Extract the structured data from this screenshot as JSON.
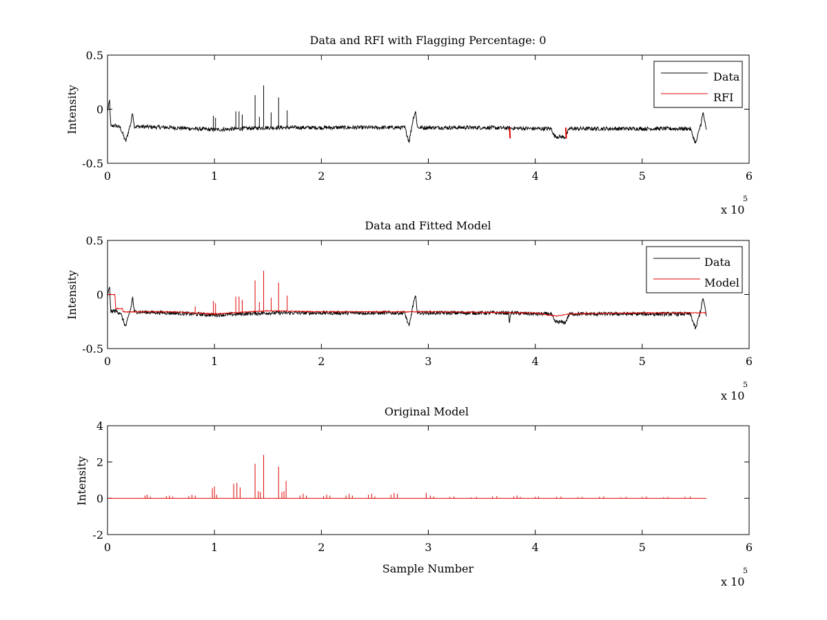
{
  "figure": {
    "multiplier_base": "x 10",
    "multiplier_exp": "5"
  },
  "chart_data": [
    {
      "type": "line",
      "title": "Data and RFI with Flagging Percentage: 0",
      "xlabel": "",
      "ylabel": "Intensity",
      "xlim": [
        0,
        600000
      ],
      "ylim": [
        -0.5,
        0.5
      ],
      "x_ticks": [
        0,
        100000,
        200000,
        300000,
        400000,
        500000,
        600000
      ],
      "x_tick_labels": [
        "0",
        "1",
        "2",
        "3",
        "4",
        "5",
        "6"
      ],
      "y_ticks": [
        -0.5,
        0,
        0.5
      ],
      "y_tick_labels": [
        "-0.5",
        "0",
        "0.5"
      ],
      "legend_position": "top-right",
      "series": [
        {
          "name": "Data",
          "color": "#000000",
          "points": [
            [
              0,
              -0.02
            ],
            [
              2000,
              0.08
            ],
            [
              3000,
              -0.16
            ],
            [
              7000,
              -0.15
            ],
            [
              12000,
              -0.17
            ],
            [
              17000,
              -0.3
            ],
            [
              22000,
              -0.12
            ],
            [
              23500,
              -0.02
            ],
            [
              25000,
              -0.16
            ],
            [
              60000,
              -0.17
            ],
            [
              100000,
              -0.19
            ],
            [
              150000,
              -0.17
            ],
            [
              200000,
              -0.17
            ],
            [
              250000,
              -0.17
            ],
            [
              278000,
              -0.17
            ],
            [
              282000,
              -0.3
            ],
            [
              286000,
              -0.08
            ],
            [
              288000,
              -0.02
            ],
            [
              290000,
              -0.17
            ],
            [
              350000,
              -0.17
            ],
            [
              400000,
              -0.18
            ],
            [
              415000,
              -0.18
            ],
            [
              418000,
              -0.25
            ],
            [
              428000,
              -0.26
            ],
            [
              432000,
              -0.18
            ],
            [
              500000,
              -0.18
            ],
            [
              545000,
              -0.18
            ],
            [
              550000,
              -0.32
            ],
            [
              555000,
              -0.13
            ],
            [
              557000,
              -0.03
            ],
            [
              560000,
              -0.2
            ]
          ],
          "spikes": [
            [
              99000,
              -0.06
            ],
            [
              101000,
              -0.08
            ],
            [
              120000,
              -0.02
            ],
            [
              123000,
              -0.02
            ],
            [
              126000,
              -0.05
            ],
            [
              138000,
              0.13
            ],
            [
              142000,
              -0.07
            ],
            [
              146000,
              0.22
            ],
            [
              153000,
              -0.03
            ],
            [
              160000,
              0.11
            ],
            [
              168000,
              -0.01
            ]
          ],
          "noise": 0.018
        },
        {
          "name": "RFI",
          "color": "#e00000",
          "segments": [
            [
              [
                376000,
                -0.17
              ],
              [
                376500,
                -0.27
              ]
            ],
            [
              [
                428500,
                -0.17
              ],
              [
                429000,
                -0.27
              ]
            ]
          ]
        }
      ]
    },
    {
      "type": "line",
      "title": "Data and Fitted Model",
      "xlabel": "",
      "ylabel": "Intensity",
      "xlim": [
        0,
        600000
      ],
      "ylim": [
        -0.5,
        0.5
      ],
      "x_ticks": [
        0,
        100000,
        200000,
        300000,
        400000,
        500000,
        600000
      ],
      "x_tick_labels": [
        "0",
        "1",
        "2",
        "3",
        "4",
        "5",
        "6"
      ],
      "y_ticks": [
        -0.5,
        0,
        0.5
      ],
      "y_tick_labels": [
        "-0.5",
        "0",
        "0.5"
      ],
      "legend_position": "top-right",
      "series": [
        {
          "name": "Data",
          "color": "#000000",
          "points": [
            [
              0,
              -0.02
            ],
            [
              2000,
              0.08
            ],
            [
              3000,
              -0.16
            ],
            [
              7000,
              -0.15
            ],
            [
              12000,
              -0.17
            ],
            [
              17000,
              -0.3
            ],
            [
              22000,
              -0.12
            ],
            [
              23500,
              -0.02
            ],
            [
              25000,
              -0.16
            ],
            [
              60000,
              -0.17
            ],
            [
              100000,
              -0.19
            ],
            [
              150000,
              -0.17
            ],
            [
              200000,
              -0.17
            ],
            [
              250000,
              -0.17
            ],
            [
              278000,
              -0.17
            ],
            [
              282000,
              -0.3
            ],
            [
              286000,
              -0.08
            ],
            [
              288000,
              -0.02
            ],
            [
              290000,
              -0.17
            ],
            [
              350000,
              -0.17
            ],
            [
              375000,
              -0.17
            ],
            [
              376000,
              -0.27
            ],
            [
              377000,
              -0.17
            ],
            [
              400000,
              -0.18
            ],
            [
              415000,
              -0.18
            ],
            [
              418000,
              -0.25
            ],
            [
              428000,
              -0.26
            ],
            [
              432000,
              -0.18
            ],
            [
              500000,
              -0.18
            ],
            [
              545000,
              -0.18
            ],
            [
              550000,
              -0.32
            ],
            [
              555000,
              -0.13
            ],
            [
              557000,
              -0.03
            ],
            [
              560000,
              -0.2
            ]
          ],
          "noise": 0.018
        },
        {
          "name": "Model",
          "color": "#e00000",
          "points": [
            [
              0,
              0.0
            ],
            [
              7000,
              0.0
            ],
            [
              7500,
              -0.13
            ],
            [
              14000,
              -0.13
            ],
            [
              14500,
              -0.16
            ],
            [
              60000,
              -0.16
            ],
            [
              100000,
              -0.18
            ],
            [
              150000,
              -0.15
            ],
            [
              200000,
              -0.16
            ],
            [
              300000,
              -0.16
            ],
            [
              400000,
              -0.17
            ],
            [
              420000,
              -0.2
            ],
            [
              430000,
              -0.18
            ],
            [
              500000,
              -0.17
            ],
            [
              560000,
              -0.17
            ]
          ],
          "spikes": [
            [
              82000,
              -0.11
            ],
            [
              99000,
              -0.06
            ],
            [
              101000,
              -0.08
            ],
            [
              120000,
              -0.02
            ],
            [
              123000,
              -0.02
            ],
            [
              126000,
              -0.05
            ],
            [
              138000,
              0.13
            ],
            [
              142000,
              -0.07
            ],
            [
              146000,
              0.22
            ],
            [
              153000,
              -0.03
            ],
            [
              160000,
              0.11
            ],
            [
              168000,
              -0.01
            ]
          ],
          "noise": 0.004
        }
      ]
    },
    {
      "type": "line",
      "title": "Original Model",
      "xlabel": "Sample Number",
      "ylabel": "Intensity",
      "xlim": [
        0,
        600000
      ],
      "ylim": [
        -2,
        4
      ],
      "x_ticks": [
        0,
        100000,
        200000,
        300000,
        400000,
        500000,
        600000
      ],
      "x_tick_labels": [
        "0",
        "1",
        "2",
        "3",
        "4",
        "5",
        "6"
      ],
      "y_ticks": [
        -2,
        0,
        2,
        4
      ],
      "y_tick_labels": [
        "-2",
        "0",
        "2",
        "4"
      ],
      "series": [
        {
          "color": "#e00000",
          "baseline": 0,
          "x_range": [
            0,
            560000
          ],
          "spikes": [
            [
              35000,
              0.15
            ],
            [
              37000,
              0.2
            ],
            [
              40000,
              0.1
            ],
            [
              55000,
              0.12
            ],
            [
              58000,
              0.15
            ],
            [
              61000,
              0.1
            ],
            [
              76000,
              0.12
            ],
            [
              79000,
              0.2
            ],
            [
              82000,
              0.15
            ],
            [
              98000,
              0.55
            ],
            [
              100000,
              0.65
            ],
            [
              102000,
              0.2
            ],
            [
              118000,
              0.8
            ],
            [
              121000,
              0.85
            ],
            [
              124000,
              0.6
            ],
            [
              138000,
              1.9
            ],
            [
              141000,
              0.4
            ],
            [
              143000,
              0.35
            ],
            [
              146000,
              2.4
            ],
            [
              160000,
              1.75
            ],
            [
              163000,
              0.35
            ],
            [
              165000,
              0.4
            ],
            [
              167000,
              0.95
            ],
            [
              180000,
              0.15
            ],
            [
              183000,
              0.25
            ],
            [
              186000,
              0.15
            ],
            [
              202000,
              0.12
            ],
            [
              205000,
              0.2
            ],
            [
              208000,
              0.15
            ],
            [
              223000,
              0.15
            ],
            [
              226000,
              0.25
            ],
            [
              229000,
              0.15
            ],
            [
              244000,
              0.2
            ],
            [
              247000,
              0.25
            ],
            [
              250000,
              0.1
            ],
            [
              265000,
              0.2
            ],
            [
              268000,
              0.3
            ],
            [
              271000,
              0.25
            ],
            [
              298000,
              0.3
            ],
            [
              302000,
              0.15
            ],
            [
              305000,
              0.1
            ],
            [
              320000,
              0.08
            ],
            [
              324000,
              0.1
            ],
            [
              340000,
              0.05
            ],
            [
              345000,
              0.08
            ],
            [
              360000,
              0.1
            ],
            [
              364000,
              0.12
            ],
            [
              380000,
              0.1
            ],
            [
              383000,
              0.15
            ],
            [
              386000,
              0.08
            ],
            [
              400000,
              0.08
            ],
            [
              403000,
              0.1
            ],
            [
              420000,
              0.08
            ],
            [
              424000,
              0.1
            ],
            [
              440000,
              0.06
            ],
            [
              444000,
              0.08
            ],
            [
              460000,
              0.08
            ],
            [
              464000,
              0.1
            ],
            [
              480000,
              0.06
            ],
            [
              485000,
              0.08
            ],
            [
              500000,
              0.08
            ],
            [
              504000,
              0.1
            ],
            [
              520000,
              0.06
            ],
            [
              524000,
              0.08
            ],
            [
              540000,
              0.08
            ],
            [
              545000,
              0.1
            ]
          ]
        }
      ]
    }
  ]
}
